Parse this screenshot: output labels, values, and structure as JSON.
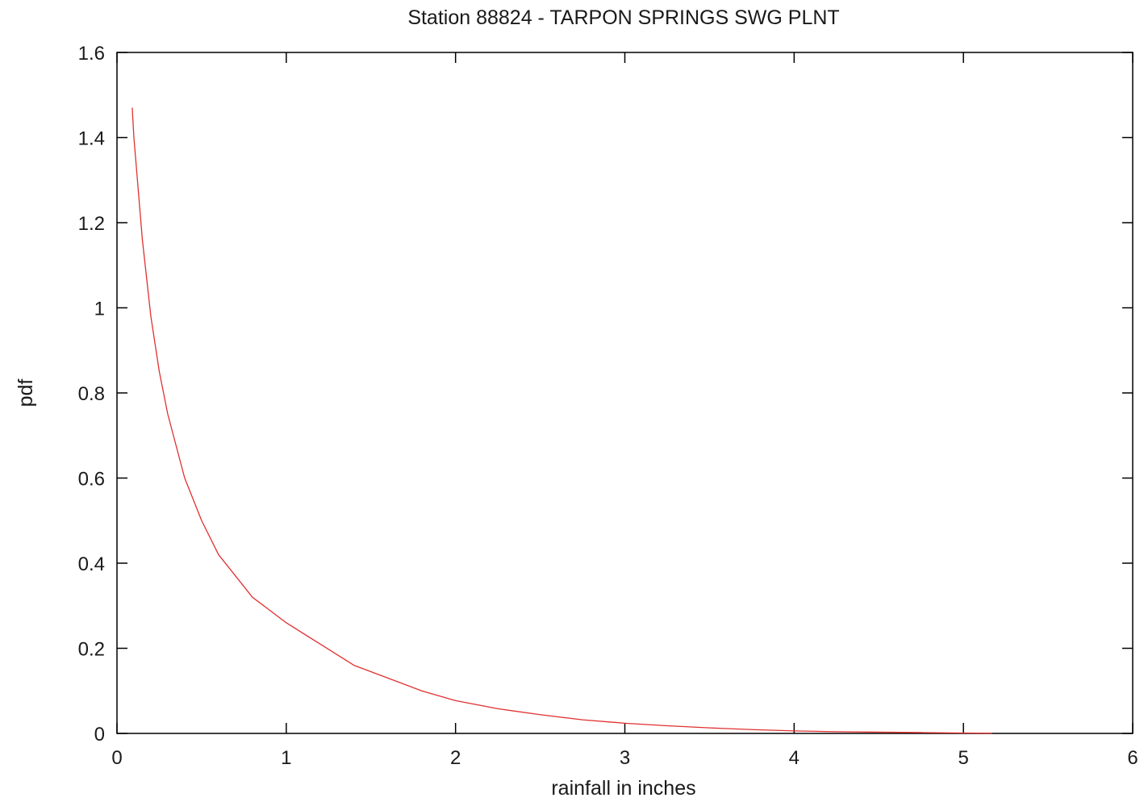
{
  "chart_data": {
    "type": "line",
    "title": "Station 88824 - TARPON SPRINGS SWG PLNT",
    "xlabel": "rainfall in inches",
    "ylabel": "pdf",
    "xlim": [
      0,
      6
    ],
    "ylim": [
      0,
      1.6
    ],
    "x_ticks": [
      "0",
      "1",
      "2",
      "3",
      "4",
      "5",
      "6"
    ],
    "y_ticks": [
      "0",
      "0.2",
      "0.4",
      "0.6",
      "0.8",
      "1",
      "1.2",
      "1.4",
      "1.6"
    ],
    "grid": false,
    "legend": "none",
    "colors": {
      "line": "#e03030",
      "axis": "#000000"
    },
    "series": [
      {
        "x": [
          0.09,
          0.1,
          0.15,
          0.2,
          0.25,
          0.3,
          0.4,
          0.5,
          0.6,
          0.7,
          0.8,
          0.9,
          1.0,
          1.2,
          1.4,
          1.6,
          1.8,
          2.0,
          2.25,
          2.5,
          2.75,
          3.0,
          3.25,
          3.5,
          3.75,
          4.0,
          4.25,
          4.5,
          4.75,
          5.0,
          5.17
        ],
        "y": [
          1.47,
          1.4,
          1.16,
          0.98,
          0.85,
          0.75,
          0.6,
          0.5,
          0.42,
          0.37,
          0.32,
          0.29,
          0.26,
          0.21,
          0.16,
          0.13,
          0.1,
          0.077,
          0.058,
          0.044,
          0.032,
          0.024,
          0.018,
          0.013,
          0.009,
          0.006,
          0.004,
          0.003,
          0.002,
          0.001,
          0.0005
        ]
      }
    ]
  }
}
